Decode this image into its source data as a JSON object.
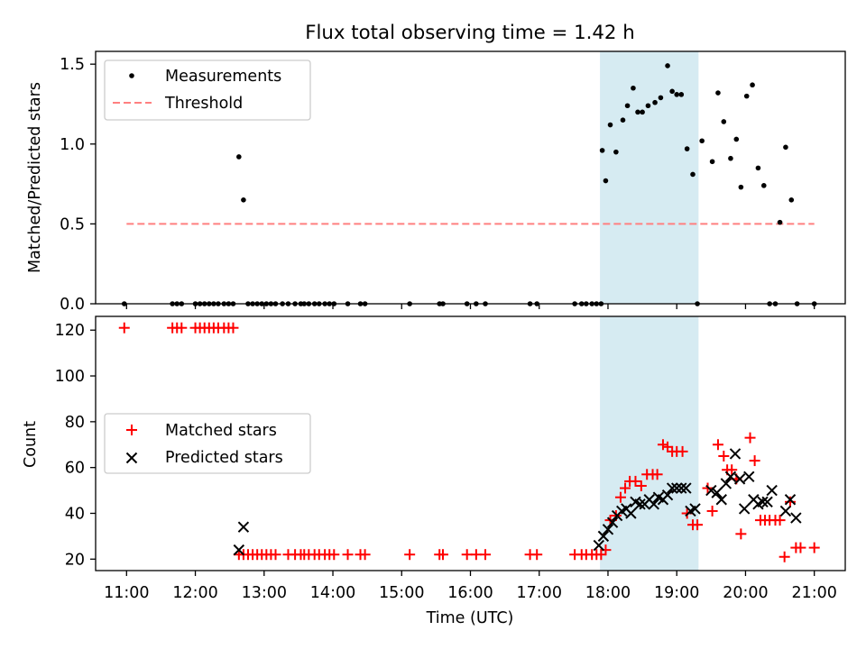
{
  "title": "Flux total observing time = 1.42 h",
  "shade_window": {
    "start": "17:53",
    "end": "19:19",
    "color": "#add8e6"
  },
  "chart_data": [
    {
      "type": "scatter",
      "ylabel": "Matched/Predicted stars",
      "xlim": [
        "10:33",
        "21:27"
      ],
      "ylim": [
        0,
        1.58
      ],
      "yticks": [
        0.0,
        0.5,
        1.0,
        1.5
      ],
      "ytick_labels": [
        "0.0",
        "0.5",
        "1.0",
        "1.5"
      ],
      "grid": false,
      "legend": {
        "placement": "upper-left",
        "entries": [
          "Measurements",
          "Threshold"
        ]
      },
      "threshold": {
        "name": "Threshold",
        "value": 0.5,
        "x_start": "11:00",
        "x_end": "21:00",
        "color": "#ff8080",
        "style": "dashed"
      },
      "series": [
        {
          "name": "Measurements",
          "color": "#000000",
          "marker": "dot",
          "x": [
            "10:58",
            "11:40",
            "11:44",
            "11:48",
            "12:00",
            "12:04",
            "12:08",
            "12:12",
            "12:16",
            "12:20",
            "12:25",
            "12:29",
            "12:33",
            "12:38",
            "12:42",
            "12:46",
            "12:50",
            "12:54",
            "12:58",
            "13:02",
            "13:06",
            "13:10",
            "13:16",
            "13:21",
            "13:27",
            "13:32",
            "13:35",
            "13:39",
            "13:44",
            "13:48",
            "13:53",
            "13:57",
            "14:01",
            "14:13",
            "14:24",
            "14:28",
            "15:07",
            "15:33",
            "15:36",
            "15:57",
            "16:05",
            "16:13",
            "16:52",
            "16:58",
            "17:31",
            "17:37",
            "17:41",
            "17:46",
            "17:50",
            "17:54",
            "17:55",
            "17:58",
            "18:02",
            "18:07",
            "18:13",
            "18:17",
            "18:22",
            "18:26",
            "18:30",
            "18:35",
            "18:41",
            "18:46",
            "18:52",
            "18:56",
            "19:00",
            "19:04",
            "19:09",
            "19:14",
            "19:18",
            "19:22",
            "19:31",
            "19:36",
            "19:41",
            "19:47",
            "19:52",
            "19:56",
            "20:01",
            "20:06",
            "20:11",
            "20:16",
            "20:21",
            "20:26",
            "20:30",
            "20:35",
            "20:40",
            "20:45",
            "21:00"
          ],
          "y": [
            0.0,
            0.0,
            0.0,
            0.0,
            0.0,
            0.0,
            0.0,
            0.0,
            0.0,
            0.0,
            0.0,
            0.0,
            0.0,
            0.92,
            0.65,
            0.0,
            0.0,
            0.0,
            0.0,
            0.0,
            0.0,
            0.0,
            0.0,
            0.0,
            0.0,
            0.0,
            0.0,
            0.0,
            0.0,
            0.0,
            0.0,
            0.0,
            0.0,
            0.0,
            0.0,
            0.0,
            0.0,
            0.0,
            0.0,
            0.0,
            0.0,
            0.0,
            0.0,
            0.0,
            0.0,
            0.0,
            0.0,
            0.0,
            0.0,
            0.0,
            0.96,
            0.77,
            1.12,
            0.95,
            1.15,
            1.24,
            1.35,
            1.2,
            1.2,
            1.24,
            1.26,
            1.29,
            1.49,
            1.33,
            1.31,
            1.31,
            0.97,
            0.81,
            0.0,
            1.02,
            0.89,
            1.32,
            1.14,
            0.91,
            1.03,
            0.73,
            1.3,
            1.37,
            0.85,
            0.74,
            0.0,
            0.0,
            0.51,
            0.98,
            0.65,
            0.0,
            0.0
          ]
        }
      ]
    },
    {
      "type": "scatter",
      "xlabel": "Time (UTC)",
      "ylabel": "Count",
      "xlim": [
        "10:33",
        "21:27"
      ],
      "xticks": [
        "11:00",
        "12:00",
        "13:00",
        "14:00",
        "15:00",
        "16:00",
        "17:00",
        "18:00",
        "19:00",
        "20:00",
        "21:00"
      ],
      "ylim": [
        15,
        126
      ],
      "yticks": [
        20,
        40,
        60,
        80,
        100,
        120
      ],
      "grid": false,
      "legend": {
        "placement": "center-left",
        "entries": [
          "Matched stars",
          "Predicted stars"
        ]
      },
      "series": [
        {
          "name": "Matched stars",
          "color": "#ff0000",
          "marker": "plus",
          "x": [
            "10:58",
            "11:40",
            "11:44",
            "11:48",
            "12:00",
            "12:04",
            "12:08",
            "12:12",
            "12:16",
            "12:20",
            "12:25",
            "12:29",
            "12:33",
            "12:38",
            "12:42",
            "12:46",
            "12:50",
            "12:54",
            "12:58",
            "13:02",
            "13:06",
            "13:10",
            "13:21",
            "13:27",
            "13:32",
            "13:35",
            "13:39",
            "13:44",
            "13:48",
            "13:53",
            "13:57",
            "14:01",
            "14:13",
            "14:24",
            "14:28",
            "15:07",
            "15:33",
            "15:36",
            "15:57",
            "16:05",
            "16:13",
            "16:52",
            "16:58",
            "17:31",
            "17:37",
            "17:41",
            "17:46",
            "17:50",
            "17:54",
            "17:58",
            "18:02",
            "18:07",
            "18:11",
            "18:15",
            "18:19",
            "18:24",
            "18:29",
            "18:34",
            "18:39",
            "18:43",
            "18:48",
            "18:52",
            "18:56",
            "19:00",
            "19:05",
            "19:09",
            "19:14",
            "19:18",
            "19:27",
            "19:31",
            "19:36",
            "19:41",
            "19:44",
            "19:48",
            "19:52",
            "19:56",
            "20:04",
            "20:08",
            "20:13",
            "20:17",
            "20:21",
            "20:26",
            "20:30",
            "20:34",
            "20:39",
            "20:44",
            "20:48",
            "21:00"
          ],
          "y": [
            121,
            121,
            121,
            121,
            121,
            121,
            121,
            121,
            121,
            121,
            121,
            121,
            121,
            22,
            22,
            22,
            22,
            22,
            22,
            22,
            22,
            22,
            22,
            22,
            22,
            22,
            22,
            22,
            22,
            22,
            22,
            22,
            22,
            22,
            22,
            22,
            22,
            22,
            22,
            22,
            22,
            22,
            22,
            22,
            22,
            22,
            22,
            22,
            22,
            24,
            37,
            39,
            47,
            51,
            54,
            54,
            52,
            57,
            57,
            57,
            70,
            69,
            67,
            67,
            67,
            40,
            35,
            35,
            51,
            41,
            70,
            65,
            59,
            59,
            55,
            31,
            73,
            63,
            37,
            37,
            37,
            37,
            37,
            21,
            45,
            25,
            25,
            25
          ]
        },
        {
          "name": "Predicted stars",
          "color": "#000000",
          "marker": "x",
          "x": [
            "12:38",
            "12:42",
            "17:52",
            "17:56",
            "18:00",
            "18:04",
            "18:08",
            "18:12",
            "18:16",
            "18:20",
            "18:24",
            "18:28",
            "18:32",
            "18:36",
            "18:40",
            "18:44",
            "18:48",
            "18:52",
            "18:56",
            "19:00",
            "19:04",
            "19:08",
            "19:12",
            "19:16",
            "19:30",
            "19:35",
            "19:39",
            "19:43",
            "19:47",
            "19:51",
            "19:55",
            "19:59",
            "20:03",
            "20:07",
            "20:11",
            "20:15",
            "20:19",
            "20:23",
            "20:35",
            "20:39",
            "20:44"
          ],
          "y": [
            24,
            34,
            26,
            30,
            33,
            36,
            39,
            41,
            42,
            40,
            45,
            44,
            44,
            46,
            44,
            47,
            46,
            48,
            51,
            51,
            51,
            51,
            41,
            42,
            50,
            49,
            46,
            53,
            56,
            66,
            55,
            42,
            56,
            46,
            44,
            45,
            45,
            50,
            41,
            46,
            38
          ]
        }
      ]
    }
  ]
}
